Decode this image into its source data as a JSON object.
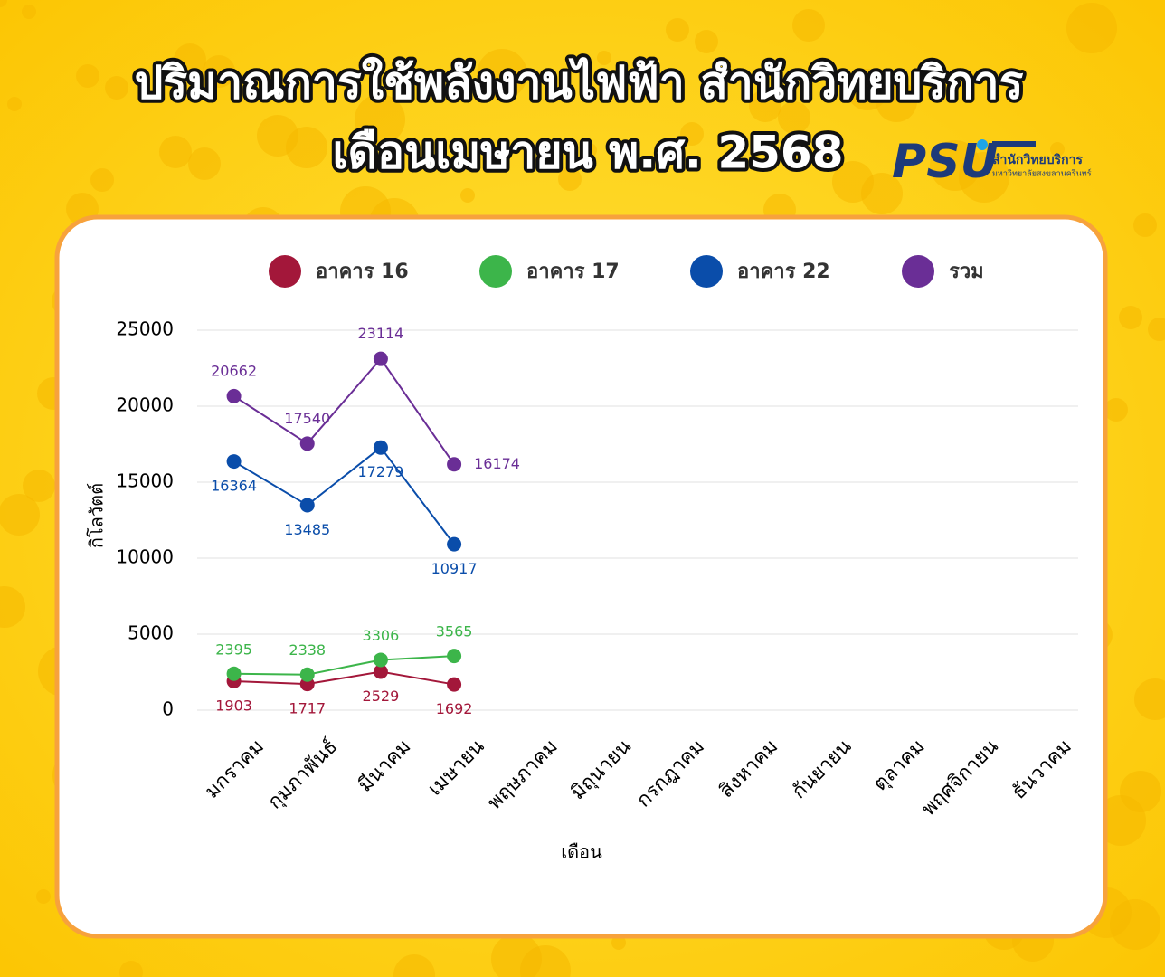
{
  "chart_data": {
    "type": "line",
    "title": "ปริมาณการใช้พลังงานไฟฟ้า สำนักวิทยบริการ",
    "subtitle": "เดือนเมษายน พ.ศ. 2568",
    "x_label": "เดือน",
    "y_label": "กิโลวัตต์",
    "categories": [
      "มกราคม",
      "กุมภาพันธ์",
      "มีนาคม",
      "เมษายน",
      "พฤษภาคม",
      "มิถุนายน",
      "กรกฎาคม",
      "สิงหาคม",
      "กันยายน",
      "ตุลาคม",
      "พฤศจิกายน",
      "ธันวาคม"
    ],
    "series": [
      {
        "name": "อาคาร 16",
        "color": "#a3173a",
        "values": [
          1903,
          1717,
          2529,
          1692,
          null,
          null,
          null,
          null,
          null,
          null,
          null,
          null
        ]
      },
      {
        "name": "อาคาร 17",
        "color": "#3cb54a",
        "values": [
          2395,
          2338,
          3306,
          3565,
          null,
          null,
          null,
          null,
          null,
          null,
          null,
          null
        ]
      },
      {
        "name": "อาคาร 22",
        "color": "#0a4daa",
        "values": [
          16364,
          13485,
          17279,
          10917,
          null,
          null,
          null,
          null,
          null,
          null,
          null,
          null
        ]
      },
      {
        "name": "รวม",
        "color": "#6a2e96",
        "values": [
          20662,
          17540,
          23114,
          16174,
          null,
          null,
          null,
          null,
          null,
          null,
          null,
          null
        ]
      }
    ],
    "ylim": [
      0,
      25000
    ],
    "yticks": [
      0,
      5000,
      10000,
      15000,
      20000,
      25000
    ],
    "grid": true,
    "legend": "top"
  },
  "logo": {
    "mark": "PSU",
    "name": "สำนักวิทยบริการ",
    "university": "มหาวิทยาลัยสงขลานครินทร์"
  }
}
